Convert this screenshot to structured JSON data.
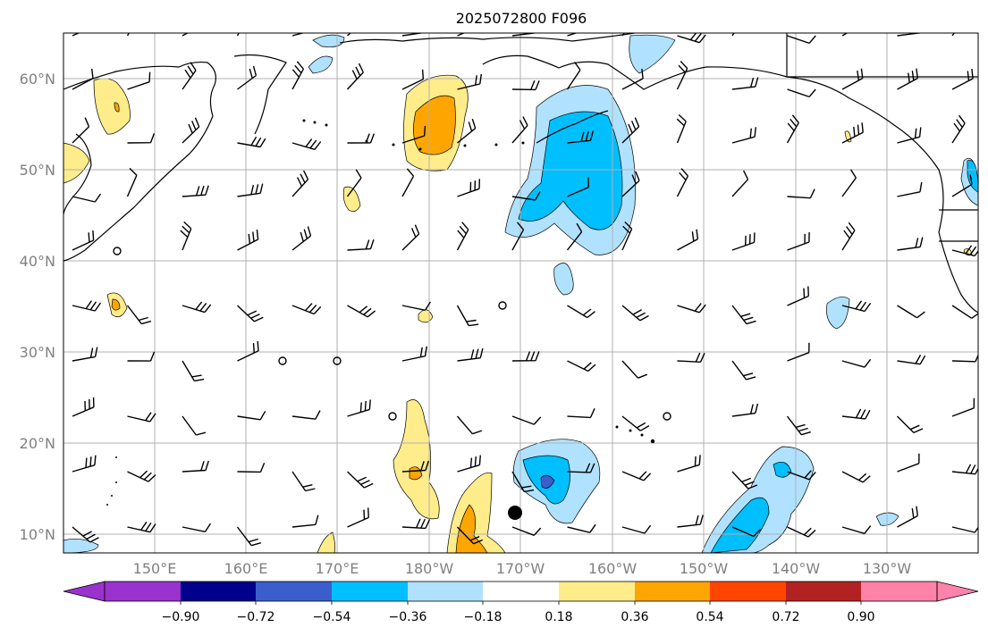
{
  "title": "2025072800 F096",
  "axes": {
    "lat_labels": [
      "10°N",
      "20°N",
      "30°N",
      "40°N",
      "50°N",
      "60°N"
    ],
    "lon_labels": [
      "150°E",
      "160°E",
      "170°E",
      "180°W",
      "170°W",
      "160°W",
      "150°W",
      "140°W",
      "130°W"
    ]
  },
  "colorbar": {
    "colors": [
      "#9a32cd",
      "#00008b",
      "#3a5fcd",
      "#00bfff",
      "#b0e2ff",
      "#ffffff",
      "#ffec8b",
      "#ffa500",
      "#ff4500",
      "#b22222",
      "#ff82ab"
    ],
    "tick_labels": [
      "−0.90",
      "−0.72",
      "−0.54",
      "−0.36",
      "−0.18",
      "0.18",
      "0.36",
      "0.54",
      "0.72",
      "0.90"
    ]
  },
  "colors": {
    "grid": "#b0b0b0",
    "coast": "#000000",
    "barb": "#000000"
  }
}
